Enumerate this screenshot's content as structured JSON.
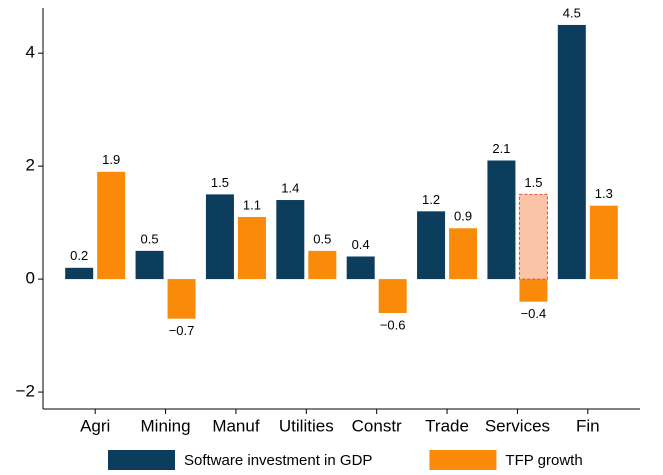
{
  "chart_data": {
    "type": "bar",
    "categories": [
      "Agri",
      "Mining",
      "Manuf",
      "Utilities",
      "Constr",
      "Trade",
      "Services",
      "Fin"
    ],
    "series": [
      {
        "name": "Software investment in GDP",
        "color": "#0d3d5c",
        "values": [
          0.2,
          0.5,
          1.5,
          1.4,
          0.4,
          1.2,
          2.1,
          4.5
        ]
      },
      {
        "name": "TFP growth",
        "color": "#f98a0a",
        "values": [
          1.9,
          -0.7,
          1.1,
          0.5,
          -0.6,
          0.9,
          -0.4,
          1.3
        ],
        "value_labels": [
          "1.9",
          "−0.7",
          "1.1",
          "0.5",
          "−0.6",
          "0.9",
          "−0.4",
          "1.3"
        ]
      },
      {
        "style": "dashed",
        "color": "#fbc3a8",
        "edge_color": "#e8502a",
        "values": [
          null,
          null,
          null,
          null,
          null,
          null,
          1.5,
          null
        ]
      }
    ],
    "ylim": [
      -2.3,
      4.8
    ],
    "yticks": [
      {
        "value": -2,
        "label": "−2"
      },
      0,
      2,
      4
    ],
    "grid": false,
    "legend": "bottom"
  }
}
